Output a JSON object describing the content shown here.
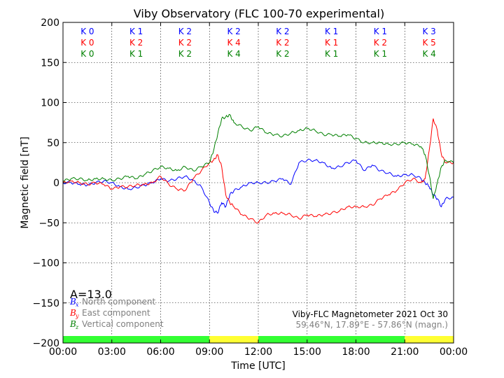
{
  "chart_data": {
    "type": "line",
    "title": "Viby Observatory (FLC 100-70 experimental)",
    "xlabel": "Time [UTC]",
    "ylabel": "Magnetic field [nT]",
    "xlim": [
      0,
      24
    ],
    "ylim": [
      -200,
      200
    ],
    "xtick_labels": [
      "00:00",
      "03:00",
      "06:00",
      "09:00",
      "12:00",
      "15:00",
      "18:00",
      "21:00",
      "00:00"
    ],
    "ytick_labels": [
      "−200",
      "−150",
      "−100",
      "−50",
      "0",
      "50",
      "100",
      "150",
      "200"
    ],
    "grid": true,
    "x": [
      0,
      0.5,
      1,
      1.5,
      2,
      2.5,
      3,
      3.5,
      4,
      4.5,
      5,
      5.5,
      6,
      6.5,
      7,
      7.5,
      8,
      8.5,
      9,
      9.25,
      9.5,
      9.75,
      10,
      10.25,
      10.5,
      11,
      11.5,
      12,
      12.5,
      13,
      13.5,
      14,
      14.5,
      15,
      15.5,
      16,
      16.5,
      17,
      17.5,
      18,
      18.5,
      19,
      19.5,
      20,
      20.5,
      21,
      21.5,
      22,
      22.25,
      22.5,
      22.75,
      23,
      23.25,
      23.5,
      24
    ],
    "series": [
      {
        "name": "North component",
        "color": "#0000ff",
        "values": [
          0,
          0,
          -2,
          -3,
          0,
          2,
          0,
          -5,
          -8,
          -6,
          -3,
          0,
          5,
          2,
          5,
          8,
          3,
          -5,
          -25,
          -35,
          -38,
          -25,
          -30,
          -15,
          -10,
          -5,
          0,
          0,
          0,
          2,
          5,
          -2,
          25,
          28,
          28,
          25,
          18,
          20,
          25,
          28,
          15,
          22,
          15,
          12,
          8,
          10,
          10,
          5,
          0,
          -5,
          -15,
          -20,
          -30,
          -20,
          -18
        ]
      },
      {
        "name": "East component",
        "color": "#ff0000",
        "values": [
          0,
          2,
          0,
          -2,
          0,
          -2,
          -8,
          -5,
          -5,
          -3,
          -2,
          0,
          8,
          -2,
          -8,
          -10,
          5,
          15,
          25,
          28,
          35,
          20,
          -15,
          -25,
          -30,
          -40,
          -45,
          -50,
          -40,
          -38,
          -38,
          -40,
          -45,
          -40,
          -42,
          -40,
          -38,
          -35,
          -30,
          -30,
          -30,
          -28,
          -20,
          -15,
          -10,
          0,
          5,
          0,
          5,
          40,
          80,
          65,
          35,
          25,
          25
        ]
      },
      {
        "name": "Vertical component",
        "color": "#008000",
        "values": [
          2,
          5,
          5,
          3,
          5,
          5,
          3,
          5,
          8,
          5,
          10,
          15,
          20,
          18,
          15,
          20,
          15,
          20,
          25,
          40,
          60,
          80,
          82,
          85,
          75,
          70,
          65,
          70,
          62,
          60,
          58,
          62,
          65,
          68,
          65,
          60,
          60,
          58,
          60,
          55,
          50,
          50,
          50,
          48,
          48,
          50,
          48,
          45,
          35,
          10,
          -20,
          0,
          20,
          28,
          25
        ]
      }
    ],
    "k_index_rows": [
      {
        "color": "#0000ff",
        "values": [
          "K 0",
          "K 1",
          "K 2",
          "K 2",
          "K 2",
          "K 1",
          "K 1",
          "K 3"
        ]
      },
      {
        "color": "#ff0000",
        "values": [
          "K 0",
          "K 2",
          "K 2",
          "K 4",
          "K 2",
          "K 1",
          "K 2",
          "K 5"
        ]
      },
      {
        "color": "#008000",
        "values": [
          "K 0",
          "K 1",
          "K 2",
          "K 4",
          "K 2",
          "K 1",
          "K 1",
          "K 4"
        ]
      }
    ],
    "activity_bar": [
      {
        "from": 0,
        "to": 9,
        "color": "#33ff33"
      },
      {
        "from": 9,
        "to": 12,
        "color": "#ffff33"
      },
      {
        "from": 12,
        "to": 21,
        "color": "#33ff33"
      },
      {
        "from": 21,
        "to": 24,
        "color": "#ffff33"
      }
    ],
    "a_index": "A=13.0",
    "legend": {
      "placement": "lower-left",
      "entries": [
        {
          "symbol": "B",
          "subscript": "x",
          "label": "North component",
          "color": "#0000ff"
        },
        {
          "symbol": "B",
          "subscript": "y",
          "label": "East component",
          "color": "#ff0000"
        },
        {
          "symbol": "B",
          "subscript": "z",
          "label": "Vertical component",
          "color": "#008000"
        }
      ]
    },
    "info_line1": "Viby-FLC Magnetometer 2021 Oct 30",
    "info_line2": "59.46°N, 17.89°E - 57.86°N (magn.)"
  }
}
